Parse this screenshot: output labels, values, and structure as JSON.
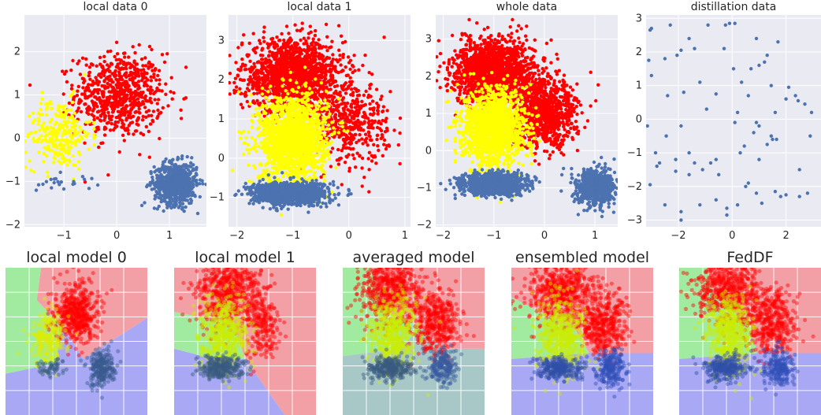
{
  "chart_data": [
    {
      "type": "scatter",
      "title": "local data 0",
      "xlim": [
        -1.75,
        1.7
      ],
      "ylim": [
        -2.05,
        2.85
      ],
      "xticks": [
        -1,
        0,
        1
      ],
      "yticks": [
        -2,
        -1,
        0,
        1,
        2
      ],
      "xtick_labels": [
        "−1",
        "0",
        "1"
      ],
      "ytick_labels": [
        "−2",
        "−1",
        "0",
        "1",
        "2"
      ],
      "clusters": [
        {
          "color": "red",
          "center": [
            0.05,
            1.0
          ],
          "spread": [
            0.42,
            0.48
          ],
          "count": 700
        },
        {
          "color": "yellow",
          "center": [
            -1.1,
            0.1
          ],
          "spread": [
            0.3,
            0.4
          ],
          "count": 280
        },
        {
          "color": "blue",
          "center": [
            1.12,
            -1.05
          ],
          "spread": [
            0.2,
            0.24
          ],
          "count": 700
        },
        {
          "color": "blue",
          "center": [
            -1.0,
            -1.0
          ],
          "spread": [
            0.3,
            0.12
          ],
          "count": 22
        }
      ]
    },
    {
      "type": "scatter",
      "title": "local data 1",
      "xlim": [
        -2.15,
        1.1
      ],
      "ylim": [
        -1.75,
        3.65
      ],
      "xticks": [
        -2,
        -1,
        0,
        1
      ],
      "yticks": [
        -1,
        0,
        1,
        2,
        3
      ],
      "xtick_labels": [
        "−2",
        "−1",
        "0",
        "1"
      ],
      "ytick_labels": [
        "−1",
        "0",
        "1",
        "2",
        "3"
      ],
      "clusters": [
        {
          "color": "red",
          "center": [
            -1.0,
            2.1
          ],
          "spread": [
            0.45,
            0.45
          ],
          "count": 1500
        },
        {
          "color": "red",
          "center": [
            0.0,
            0.9
          ],
          "spread": [
            0.35,
            0.5
          ],
          "count": 450
        },
        {
          "color": "yellow",
          "center": [
            -1.0,
            0.5
          ],
          "spread": [
            0.3,
            0.55
          ],
          "count": 1600
        },
        {
          "color": "blue",
          "center": [
            -1.05,
            -0.9
          ],
          "spread": [
            0.33,
            0.14
          ],
          "count": 1200
        }
      ]
    },
    {
      "type": "scatter",
      "title": "whole data",
      "xlim": [
        -2.15,
        1.45
      ],
      "ylim": [
        -2.05,
        3.65
      ],
      "xticks": [
        -2,
        -1,
        0,
        1
      ],
      "yticks": [
        -2,
        -1,
        0,
        1,
        2,
        3
      ],
      "xtick_labels": [
        "−2",
        "−1",
        "0",
        "1"
      ],
      "ytick_labels": [
        "−2",
        "−1",
        "0",
        "1",
        "2",
        "3"
      ],
      "clusters": [
        {
          "color": "red",
          "center": [
            -1.0,
            2.1
          ],
          "spread": [
            0.4,
            0.45
          ],
          "count": 1500
        },
        {
          "color": "red",
          "center": [
            0.0,
            1.0
          ],
          "spread": [
            0.33,
            0.45
          ],
          "count": 900
        },
        {
          "color": "yellow",
          "center": [
            -1.0,
            0.6
          ],
          "spread": [
            0.3,
            0.5
          ],
          "count": 1600
        },
        {
          "color": "blue",
          "center": [
            -1.0,
            -0.9
          ],
          "spread": [
            0.3,
            0.14
          ],
          "count": 1200
        },
        {
          "color": "blue",
          "center": [
            1.0,
            -1.0
          ],
          "spread": [
            0.18,
            0.25
          ],
          "count": 700
        }
      ]
    },
    {
      "type": "scatter",
      "title": "distillation data",
      "xlim": [
        -3.2,
        3.3
      ],
      "ylim": [
        -3.2,
        3.1
      ],
      "xticks": [
        -2,
        0,
        2
      ],
      "yticks": [
        -3,
        -2,
        -1,
        0,
        1,
        2,
        3
      ],
      "xtick_labels": [
        "−2",
        "0",
        "2"
      ],
      "ytick_labels": [
        "−3",
        "−2",
        "−1",
        "0",
        "1",
        "2",
        "3"
      ],
      "points": [
        [
          -3.0,
          2.7
        ],
        [
          -3.05,
          2.65
        ],
        [
          -2.3,
          2.8
        ],
        [
          -1.6,
          2.4
        ],
        [
          -0.9,
          2.8
        ],
        [
          -0.25,
          2.8
        ],
        [
          -0.1,
          2.85
        ],
        [
          0.1,
          2.85
        ],
        [
          0.9,
          2.4
        ],
        [
          1.7,
          2.3
        ],
        [
          -3.1,
          1.75
        ],
        [
          -2.5,
          1.8
        ],
        [
          -2.05,
          1.9
        ],
        [
          -1.9,
          2.05
        ],
        [
          -1.4,
          2.1
        ],
        [
          -0.3,
          2.1
        ],
        [
          0.05,
          1.5
        ],
        [
          0.7,
          1.5
        ],
        [
          1.0,
          1.6
        ],
        [
          1.2,
          1.7
        ],
        [
          1.3,
          1.9
        ],
        [
          -3.0,
          1.3
        ],
        [
          -1.2,
          1.1
        ],
        [
          0.35,
          1.1
        ],
        [
          1.45,
          1.0
        ],
        [
          2.1,
          0.95
        ],
        [
          2.35,
          0.7
        ],
        [
          -2.4,
          0.7
        ],
        [
          -1.8,
          0.8
        ],
        [
          -0.6,
          0.75
        ],
        [
          0.6,
          0.7
        ],
        [
          2.0,
          0.6
        ],
        [
          2.45,
          0.55
        ],
        [
          2.7,
          0.45
        ],
        [
          -0.95,
          0.3
        ],
        [
          0.2,
          0.2
        ],
        [
          2.95,
          0.2
        ],
        [
          1.6,
          0.2
        ],
        [
          -3.15,
          -0.2
        ],
        [
          -2.45,
          -0.5
        ],
        [
          -1.9,
          -0.2
        ],
        [
          0.1,
          -0.1
        ],
        [
          0.9,
          -0.1
        ],
        [
          0.8,
          -0.4
        ],
        [
          1.0,
          -0.2
        ],
        [
          1.45,
          -0.5
        ],
        [
          2.9,
          -0.5
        ],
        [
          -1.6,
          -1.0
        ],
        [
          -1.4,
          -1.3
        ],
        [
          -1.1,
          -1.5
        ],
        [
          0.3,
          -1.0
        ],
        [
          0.45,
          -0.8
        ],
        [
          1.3,
          -0.75
        ],
        [
          1.5,
          -0.6
        ],
        [
          1.65,
          -0.6
        ],
        [
          -2.85,
          -1.0
        ],
        [
          -2.7,
          -1.3
        ],
        [
          -2.1,
          -1.2
        ],
        [
          -1.6,
          -1.65
        ],
        [
          -0.8,
          -1.3
        ],
        [
          -0.6,
          -1.2
        ],
        [
          1.0,
          -1.2
        ],
        [
          2.5,
          -1.5
        ],
        [
          -3.05,
          -1.95
        ],
        [
          -2.8,
          -1.4
        ],
        [
          -2.1,
          -1.55
        ],
        [
          -0.5,
          -1.65
        ],
        [
          0.5,
          -2.0
        ],
        [
          0.6,
          -1.9
        ],
        [
          1.6,
          -2.15
        ],
        [
          2.0,
          -2.25
        ],
        [
          2.5,
          -2.3
        ],
        [
          2.8,
          -2.2
        ],
        [
          -2.5,
          -2.55
        ],
        [
          -1.9,
          -2.75
        ],
        [
          -1.2,
          -2.55
        ],
        [
          -0.6,
          -2.4
        ],
        [
          -0.2,
          -2.65
        ],
        [
          0.2,
          -2.55
        ],
        [
          -0.2,
          -2.85
        ],
        [
          0.9,
          -2.2
        ],
        [
          1.1,
          -2.5
        ],
        [
          1.8,
          -2.3
        ],
        [
          -1.9,
          -3.0
        ]
      ]
    },
    {
      "type": "heatmap",
      "title": "local model 0",
      "description_regions": "decision regions"
    },
    {
      "type": "heatmap",
      "title": "local model 1"
    },
    {
      "type": "heatmap",
      "title": "averaged model"
    },
    {
      "type": "heatmap",
      "title": "ensembled model"
    },
    {
      "type": "heatmap",
      "title": "FedDF"
    }
  ],
  "colors": {
    "red": "#ff0000",
    "yellow": "#ffff00",
    "blue": "#4c72b0",
    "bg": "#eaeaf2",
    "grid": "#ffffff",
    "region_red": "#f2a0a6",
    "region_green": "#a0eba0",
    "region_blue": "#a8a8f5"
  }
}
